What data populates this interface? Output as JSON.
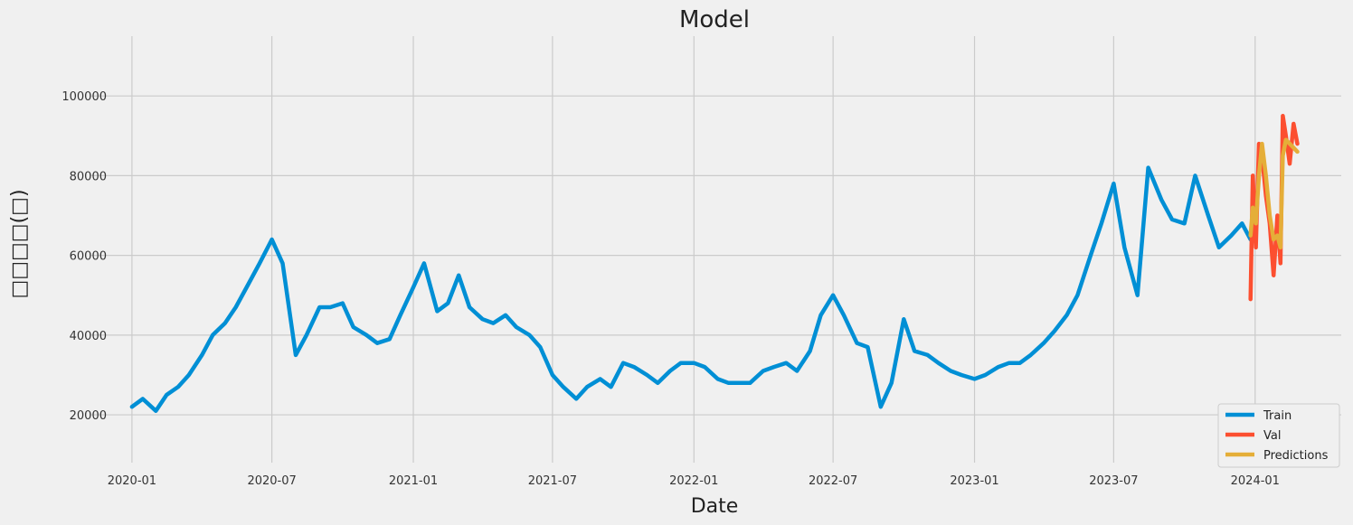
{
  "chart_data": {
    "type": "line",
    "title": "Model",
    "xlabel": "Date",
    "ylabel": "□□□□(□)",
    "x_range": [
      "2019-11-08",
      "2024-04-22"
    ],
    "ylim": [
      8000,
      115000
    ],
    "x_ticks": [
      "2020-01",
      "2020-07",
      "2021-01",
      "2021-07",
      "2022-01",
      "2022-07",
      "2023-01",
      "2023-07",
      "2024-01"
    ],
    "y_ticks": [
      20000,
      40000,
      60000,
      80000,
      100000
    ],
    "y_tick_labels": [
      "20000",
      "40000",
      "60000",
      "80000",
      "100000"
    ],
    "grid": true,
    "legend_position": "bottom-right",
    "series": [
      {
        "name": "Train",
        "color": "#008fd5",
        "points": [
          [
            "2020-01-01",
            22000
          ],
          [
            "2020-01-15",
            24000
          ],
          [
            "2020-02-01",
            21000
          ],
          [
            "2020-02-15",
            25000
          ],
          [
            "2020-03-01",
            27000
          ],
          [
            "2020-03-15",
            30000
          ],
          [
            "2020-04-01",
            35000
          ],
          [
            "2020-04-15",
            40000
          ],
          [
            "2020-05-01",
            43000
          ],
          [
            "2020-05-15",
            47000
          ],
          [
            "2020-06-01",
            53000
          ],
          [
            "2020-06-15",
            58000
          ],
          [
            "2020-07-01",
            64000
          ],
          [
            "2020-07-15",
            58000
          ],
          [
            "2020-08-01",
            35000
          ],
          [
            "2020-08-15",
            40000
          ],
          [
            "2020-09-01",
            47000
          ],
          [
            "2020-09-15",
            47000
          ],
          [
            "2020-10-01",
            48000
          ],
          [
            "2020-10-15",
            42000
          ],
          [
            "2020-11-01",
            40000
          ],
          [
            "2020-11-15",
            38000
          ],
          [
            "2020-12-01",
            39000
          ],
          [
            "2020-12-15",
            45000
          ],
          [
            "2021-01-01",
            52000
          ],
          [
            "2021-01-15",
            58000
          ],
          [
            "2021-02-01",
            46000
          ],
          [
            "2021-02-15",
            48000
          ],
          [
            "2021-03-01",
            55000
          ],
          [
            "2021-03-15",
            47000
          ],
          [
            "2021-04-01",
            44000
          ],
          [
            "2021-04-15",
            43000
          ],
          [
            "2021-05-01",
            45000
          ],
          [
            "2021-05-15",
            42000
          ],
          [
            "2021-06-01",
            40000
          ],
          [
            "2021-06-15",
            37000
          ],
          [
            "2021-07-01",
            30000
          ],
          [
            "2021-07-15",
            27000
          ],
          [
            "2021-08-01",
            24000
          ],
          [
            "2021-08-15",
            27000
          ],
          [
            "2021-09-01",
            29000
          ],
          [
            "2021-09-15",
            27000
          ],
          [
            "2021-10-01",
            33000
          ],
          [
            "2021-10-15",
            32000
          ],
          [
            "2021-11-01",
            30000
          ],
          [
            "2021-11-15",
            28000
          ],
          [
            "2021-12-01",
            31000
          ],
          [
            "2021-12-15",
            33000
          ],
          [
            "2022-01-01",
            33000
          ],
          [
            "2022-01-15",
            32000
          ],
          [
            "2022-02-01",
            29000
          ],
          [
            "2022-02-15",
            28000
          ],
          [
            "2022-03-01",
            28000
          ],
          [
            "2022-03-15",
            28000
          ],
          [
            "2022-04-01",
            31000
          ],
          [
            "2022-04-15",
            32000
          ],
          [
            "2022-05-01",
            33000
          ],
          [
            "2022-05-15",
            31000
          ],
          [
            "2022-06-01",
            36000
          ],
          [
            "2022-06-15",
            45000
          ],
          [
            "2022-07-01",
            50000
          ],
          [
            "2022-07-15",
            45000
          ],
          [
            "2022-08-01",
            38000
          ],
          [
            "2022-08-15",
            37000
          ],
          [
            "2022-09-01",
            22000
          ],
          [
            "2022-09-15",
            28000
          ],
          [
            "2022-10-01",
            44000
          ],
          [
            "2022-10-15",
            36000
          ],
          [
            "2022-11-01",
            35000
          ],
          [
            "2022-11-15",
            33000
          ],
          [
            "2022-12-01",
            31000
          ],
          [
            "2022-12-15",
            30000
          ],
          [
            "2023-01-01",
            29000
          ],
          [
            "2023-01-15",
            30000
          ],
          [
            "2023-02-01",
            32000
          ],
          [
            "2023-02-15",
            33000
          ],
          [
            "2023-03-01",
            33000
          ],
          [
            "2023-03-15",
            35000
          ],
          [
            "2023-04-01",
            38000
          ],
          [
            "2023-04-15",
            41000
          ],
          [
            "2023-05-01",
            45000
          ],
          [
            "2023-05-15",
            50000
          ],
          [
            "2023-06-01",
            60000
          ],
          [
            "2023-06-15",
            68000
          ],
          [
            "2023-07-01",
            78000
          ],
          [
            "2023-07-15",
            62000
          ],
          [
            "2023-08-01",
            50000
          ],
          [
            "2023-08-15",
            82000
          ],
          [
            "2023-09-01",
            74000
          ],
          [
            "2023-09-15",
            69000
          ],
          [
            "2023-10-01",
            68000
          ],
          [
            "2023-10-15",
            80000
          ],
          [
            "2023-11-01",
            70000
          ],
          [
            "2023-11-15",
            62000
          ],
          [
            "2023-12-01",
            65000
          ],
          [
            "2023-12-15",
            68000
          ],
          [
            "2023-12-26",
            64000
          ]
        ]
      },
      {
        "name": "Val",
        "color": "#fc4f30",
        "points": [
          [
            "2023-12-26",
            49000
          ],
          [
            "2023-12-29",
            80000
          ],
          [
            "2024-01-02",
            62000
          ],
          [
            "2024-01-06",
            88000
          ],
          [
            "2024-01-10",
            85000
          ],
          [
            "2024-01-15",
            75000
          ],
          [
            "2024-01-20",
            68000
          ],
          [
            "2024-01-25",
            55000
          ],
          [
            "2024-01-30",
            70000
          ],
          [
            "2024-02-03",
            58000
          ],
          [
            "2024-02-06",
            95000
          ],
          [
            "2024-02-10",
            90000
          ],
          [
            "2024-02-15",
            83000
          ],
          [
            "2024-02-20",
            93000
          ],
          [
            "2024-02-25",
            88000
          ]
        ]
      },
      {
        "name": "Predictions",
        "color": "#e5ae38",
        "points": [
          [
            "2023-12-26",
            65000
          ],
          [
            "2023-12-29",
            72000
          ],
          [
            "2024-01-02",
            68000
          ],
          [
            "2024-01-06",
            80000
          ],
          [
            "2024-01-10",
            88000
          ],
          [
            "2024-01-15",
            80000
          ],
          [
            "2024-01-20",
            70000
          ],
          [
            "2024-01-25",
            64000
          ],
          [
            "2024-01-30",
            65000
          ],
          [
            "2024-02-03",
            62000
          ],
          [
            "2024-02-06",
            85000
          ],
          [
            "2024-02-10",
            89000
          ],
          [
            "2024-02-15",
            88000
          ],
          [
            "2024-02-20",
            87000
          ],
          [
            "2024-02-25",
            86000
          ]
        ]
      }
    ]
  }
}
